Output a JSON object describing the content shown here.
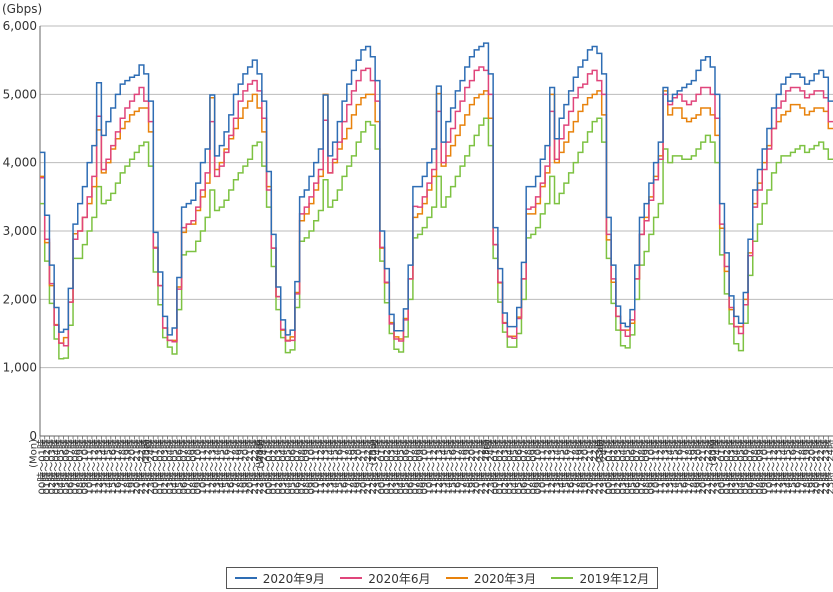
{
  "chart_data": {
    "type": "line",
    "title": "",
    "ylabel": "(Gbps)",
    "xlabel": "",
    "ylim": [
      0,
      6000
    ],
    "yticks": [
      0,
      1000,
      2000,
      3000,
      4000,
      5000,
      6000
    ],
    "ytick_labels": [
      "0",
      "1,000",
      "2,000",
      "3,000",
      "4,000",
      "5,000",
      "6,000"
    ],
    "hour_labels": [
      "00時〜01時",
      "01時〜02時",
      "02時〜03時",
      "03時〜04時",
      "04時〜05時",
      "05時〜06時",
      "06時〜07時",
      "07時〜08時",
      "08時〜09時",
      "09時〜10時",
      "10時〜11時",
      "11時〜12時",
      "12時〜13時",
      "13時〜14時",
      "14時〜15時",
      "15時〜16時",
      "16時〜17時",
      "17時〜18時",
      "18時〜19時",
      "19時〜20時",
      "20時〜21時",
      "21時〜22時",
      "22時〜23時",
      "23時〜24時"
    ],
    "days": [
      "(Mon)",
      "(Tue)",
      "(Wed)",
      "(Thu)",
      "(Fri)",
      "(Sat)",
      "(Sun)"
    ],
    "grid": "horizontal",
    "legend_position": "bottom",
    "series": [
      {
        "name": "2020年9月",
        "color": "#2e6db4",
        "values": [
          4150,
          3230,
          2500,
          1880,
          1520,
          1560,
          2160,
          3100,
          3400,
          3650,
          4000,
          4250,
          5170,
          4400,
          4600,
          4800,
          5000,
          5150,
          5200,
          5250,
          5280,
          5430,
          5300,
          4900,
          2980,
          2400,
          1750,
          1480,
          1580,
          2320,
          3350,
          3400,
          3450,
          3700,
          4000,
          4200,
          4990,
          4100,
          4250,
          4450,
          4700,
          5000,
          5150,
          5300,
          5400,
          5500,
          5300,
          4900,
          3870,
          2950,
          2180,
          1700,
          1480,
          1550,
          2260,
          3500,
          3600,
          3800,
          4000,
          4200,
          4990,
          4100,
          4300,
          4600,
          4900,
          5150,
          5350,
          5500,
          5650,
          5700,
          5550,
          5200,
          3000,
          2450,
          1780,
          1540,
          1540,
          1860,
          2500,
          3650,
          3650,
          3800,
          4000,
          4200,
          5120,
          4300,
          4600,
          4800,
          5050,
          5200,
          5400,
          5550,
          5650,
          5700,
          5750,
          5300,
          3050,
          2450,
          1800,
          1600,
          1600,
          1880,
          2540,
          3650,
          3650,
          3800,
          4050,
          4250,
          5100,
          4350,
          4650,
          4850,
          5050,
          5250,
          5400,
          5500,
          5650,
          5700,
          5600,
          5300,
          3200,
          2500,
          1900,
          1650,
          1600,
          1850,
          2500,
          3200,
          3400,
          3700,
          4000,
          4300,
          5100,
          4900,
          5000,
          5050,
          5100,
          5150,
          5200,
          5350,
          5500,
          5550,
          5400,
          5000,
          3400,
          2680,
          2050,
          1750,
          1650,
          2100,
          2880,
          3600,
          3900,
          4200,
          4500,
          4800,
          5000,
          5150,
          5250,
          5300,
          5300,
          5250,
          5150,
          5200,
          5300,
          5350,
          5250,
          4900
        ]
      },
      {
        "name": "2020年6月",
        "color": "#e0457b",
        "values": [
          3780,
          2880,
          2230,
          1620,
          1360,
          1320,
          1960,
          2880,
          3000,
          3200,
          3500,
          3800,
          4680,
          3900,
          4050,
          4250,
          4450,
          4650,
          4800,
          4900,
          5000,
          5100,
          4900,
          4600,
          2750,
          2200,
          1580,
          1400,
          1380,
          2150,
          3050,
          3100,
          3150,
          3350,
          3600,
          3850,
          4600,
          3800,
          3950,
          4150,
          4400,
          4650,
          4900,
          5050,
          5150,
          5200,
          5050,
          4650,
          3600,
          2750,
          2040,
          1560,
          1390,
          1400,
          2080,
          3250,
          3350,
          3500,
          3700,
          3900,
          4620,
          3850,
          4050,
          4300,
          4600,
          4850,
          5050,
          5200,
          5350,
          5380,
          5200,
          4900,
          2760,
          2250,
          1640,
          1420,
          1390,
          1700,
          2300,
          3360,
          3350,
          3500,
          3700,
          3900,
          4750,
          4000,
          4300,
          4500,
          4750,
          4900,
          5100,
          5200,
          5350,
          5400,
          5350,
          5000,
          2800,
          2250,
          1650,
          1450,
          1430,
          1720,
          2300,
          3320,
          3350,
          3500,
          3700,
          3950,
          4750,
          4050,
          4350,
          4550,
          4750,
          4950,
          5100,
          5150,
          5300,
          5350,
          5200,
          5000,
          2950,
          2300,
          1750,
          1550,
          1460,
          1700,
          2300,
          2950,
          3150,
          3450,
          3750,
          4050,
          5000,
          4850,
          4950,
          5000,
          4900,
          4850,
          4900,
          5000,
          5100,
          5100,
          5000,
          4650,
          3100,
          2480,
          1880,
          1600,
          1500,
          1920,
          2640,
          3350,
          3600,
          3900,
          4200,
          4500,
          4800,
          4900,
          5050,
          5100,
          5100,
          5050,
          4950,
          5000,
          5050,
          5050,
          4950,
          4600
        ]
      },
      {
        "name": "2020年3月",
        "color": "#e8820c",
        "values": [
          3800,
          2830,
          2200,
          1630,
          1360,
          1440,
          1960,
          2960,
          3000,
          3200,
          3400,
          3650,
          4480,
          3850,
          4000,
          4200,
          4350,
          4500,
          4600,
          4700,
          4750,
          4800,
          4800,
          4450,
          2760,
          2200,
          1580,
          1400,
          1400,
          2180,
          2980,
          3100,
          3100,
          3300,
          3500,
          3700,
          4950,
          3900,
          4000,
          4200,
          4350,
          4500,
          4650,
          4800,
          4900,
          5000,
          4800,
          4450,
          3650,
          2750,
          2040,
          1550,
          1400,
          1450,
          2100,
          3150,
          3250,
          3400,
          3600,
          3800,
          5000,
          3850,
          4000,
          4200,
          4350,
          4500,
          4700,
          4850,
          4950,
          5000,
          5000,
          4600,
          2750,
          2240,
          1660,
          1450,
          1420,
          1720,
          2300,
          3200,
          3250,
          3400,
          3600,
          3800,
          5010,
          3950,
          4100,
          4250,
          4400,
          4550,
          4700,
          4850,
          4950,
          5000,
          5050,
          4650,
          2800,
          2240,
          1660,
          1460,
          1460,
          1740,
          2300,
          3250,
          3250,
          3400,
          3650,
          3850,
          5000,
          4000,
          4150,
          4300,
          4450,
          4600,
          4750,
          4850,
          4950,
          5000,
          5050,
          4700,
          2870,
          2250,
          1750,
          1550,
          1550,
          1650,
          2300,
          2950,
          3200,
          3500,
          3800,
          4100,
          5050,
          4700,
          4800,
          4800,
          4650,
          4600,
          4650,
          4700,
          4800,
          4800,
          4700,
          4400,
          3040,
          2410,
          1850,
          1600,
          1600,
          2000,
          2680,
          3400,
          3700,
          4000,
          4250,
          4500,
          4600,
          4700,
          4750,
          4850,
          4850,
          4800,
          4700,
          4750,
          4800,
          4800,
          4750,
          4500
        ]
      },
      {
        "name": "2019年12月",
        "color": "#7dc242",
        "values": [
          3400,
          2560,
          1940,
          1420,
          1130,
          1140,
          1620,
          2600,
          2600,
          2800,
          3000,
          3200,
          3650,
          3400,
          3450,
          3550,
          3700,
          3850,
          3950,
          4050,
          4150,
          4250,
          4300,
          3950,
          2400,
          1920,
          1440,
          1300,
          1200,
          1850,
          2650,
          2700,
          2700,
          2850,
          3000,
          3200,
          3600,
          3300,
          3350,
          3450,
          3600,
          3750,
          3850,
          3950,
          4050,
          4250,
          4300,
          3950,
          3350,
          2480,
          1850,
          1440,
          1220,
          1260,
          1880,
          2850,
          2900,
          3000,
          3150,
          3300,
          3750,
          3350,
          3450,
          3600,
          3800,
          3950,
          4100,
          4300,
          4450,
          4600,
          4550,
          4200,
          2560,
          1950,
          1500,
          1270,
          1230,
          1450,
          2000,
          2900,
          2950,
          3050,
          3200,
          3350,
          3800,
          3350,
          3500,
          3650,
          3800,
          3950,
          4100,
          4250,
          4400,
          4550,
          4650,
          4250,
          2600,
          1960,
          1520,
          1300,
          1300,
          1500,
          2000,
          2900,
          2950,
          3050,
          3250,
          3400,
          3800,
          3400,
          3550,
          3700,
          3850,
          4000,
          4150,
          4300,
          4450,
          4600,
          4650,
          4300,
          2600,
          1940,
          1550,
          1320,
          1290,
          1480,
          2000,
          2500,
          2700,
          2950,
          3200,
          3400,
          4200,
          4000,
          4100,
          4100,
          4050,
          4050,
          4100,
          4200,
          4300,
          4400,
          4300,
          4000,
          2650,
          2080,
          1640,
          1350,
          1250,
          1650,
          2350,
          2850,
          3100,
          3400,
          3600,
          3850,
          4000,
          4100,
          4100,
          4150,
          4200,
          4250,
          4150,
          4200,
          4250,
          4300,
          4200,
          4050
        ]
      }
    ]
  }
}
